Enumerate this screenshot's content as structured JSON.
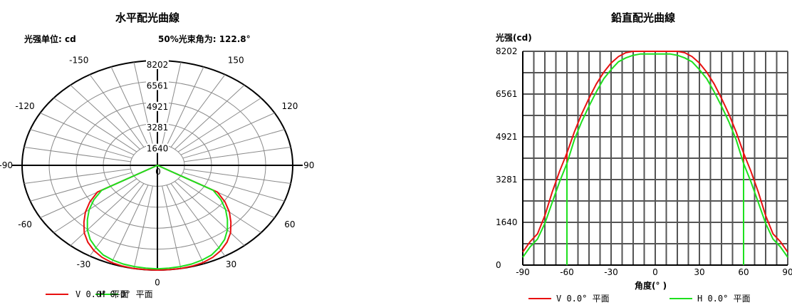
{
  "chart_data": [
    {
      "type": "polar",
      "title": "水平配光曲線",
      "unit_label": "光强单位: cd",
      "beam_angle_label": "50%光束角为: 122.8°",
      "radial_ticks": [
        "1640",
        "3281",
        "4921",
        "6561",
        "8202"
      ],
      "rmax": 8202,
      "angle_ticks": [
        "-150",
        "150",
        "-120",
        "120",
        "-90",
        "90",
        "-60",
        "60",
        "-30",
        "30",
        "0"
      ],
      "center_label": "0",
      "series": [
        {
          "name": "V 0.0° 平面",
          "color": "#e81010",
          "angles": [
            -90,
            -60,
            -55,
            -50,
            -45,
            -40,
            -35,
            -30,
            -25,
            -20,
            -15,
            -10,
            -5,
            0,
            5,
            10,
            15,
            20,
            25,
            30,
            35,
            40,
            45,
            50,
            55,
            60,
            90
          ],
          "values": [
            0,
            4200,
            5000,
            5700,
            6300,
            6900,
            7350,
            7700,
            7950,
            8100,
            8170,
            8202,
            8202,
            8202,
            8202,
            8202,
            8170,
            8100,
            7950,
            7700,
            7350,
            6900,
            6300,
            5700,
            5000,
            4200,
            0
          ]
        },
        {
          "name": "H 0.0° 平面",
          "color": "#1ee01e",
          "angles": [
            -90,
            -60,
            -55,
            -50,
            -45,
            -40,
            -35,
            -30,
            -25,
            -20,
            -15,
            -10,
            -5,
            0,
            5,
            10,
            15,
            20,
            25,
            30,
            35,
            40,
            45,
            50,
            55,
            60,
            90
          ],
          "values": [
            0,
            3900,
            4700,
            5400,
            6000,
            6600,
            7100,
            7450,
            7750,
            7900,
            8000,
            8050,
            8080,
            8100,
            8080,
            8050,
            8000,
            7900,
            7750,
            7450,
            7100,
            6600,
            6000,
            5400,
            4700,
            3900,
            0
          ]
        }
      ]
    },
    {
      "type": "line",
      "title": "鉛直配光曲線",
      "ylabel": "光强(cd)",
      "xlabel": "角度(° )",
      "xlim": [
        -90,
        90
      ],
      "ylim": [
        0,
        8202
      ],
      "x_ticks": [
        "-90",
        "-60",
        "-30",
        "0",
        "30",
        "60",
        "90"
      ],
      "y_ticks": [
        "0",
        "1640",
        "3281",
        "4921",
        "6561",
        "8202"
      ],
      "grid": true,
      "series": [
        {
          "name": "V 0.0° 平面",
          "color": "#e81010",
          "x": [
            -90,
            -85,
            -80,
            -75,
            -70,
            -65,
            -60,
            -55,
            -50,
            -45,
            -40,
            -35,
            -30,
            -25,
            -20,
            -15,
            -10,
            -5,
            0,
            5,
            10,
            15,
            20,
            25,
            30,
            35,
            40,
            45,
            50,
            55,
            60,
            65,
            70,
            75,
            80,
            85,
            90
          ],
          "y": [
            500,
            900,
            1200,
            1900,
            2800,
            3600,
            4300,
            5100,
            5800,
            6400,
            6950,
            7400,
            7750,
            8000,
            8150,
            8202,
            8202,
            8202,
            8202,
            8202,
            8202,
            8202,
            8150,
            8000,
            7750,
            7400,
            6950,
            6400,
            5800,
            5100,
            4300,
            3600,
            2800,
            1900,
            1200,
            900,
            500
          ]
        },
        {
          "name": "H 0.0° 平面",
          "color": "#1ee01e",
          "x": [
            -90,
            -85,
            -80,
            -75,
            -70,
            -65,
            -60,
            -55,
            -50,
            -45,
            -40,
            -35,
            -30,
            -25,
            -20,
            -15,
            -10,
            -5,
            0,
            5,
            10,
            15,
            20,
            25,
            30,
            35,
            40,
            45,
            50,
            55,
            60,
            65,
            70,
            75,
            80,
            85,
            90
          ],
          "y": [
            300,
            700,
            1000,
            1600,
            2400,
            3200,
            3900,
            4800,
            5500,
            6100,
            6650,
            7150,
            7500,
            7800,
            7950,
            8050,
            8100,
            8100,
            8100,
            8100,
            8100,
            8050,
            7950,
            7800,
            7500,
            7150,
            6650,
            6100,
            5500,
            4800,
            3900,
            3200,
            2400,
            1600,
            1000,
            700,
            300
          ]
        }
      ]
    }
  ]
}
